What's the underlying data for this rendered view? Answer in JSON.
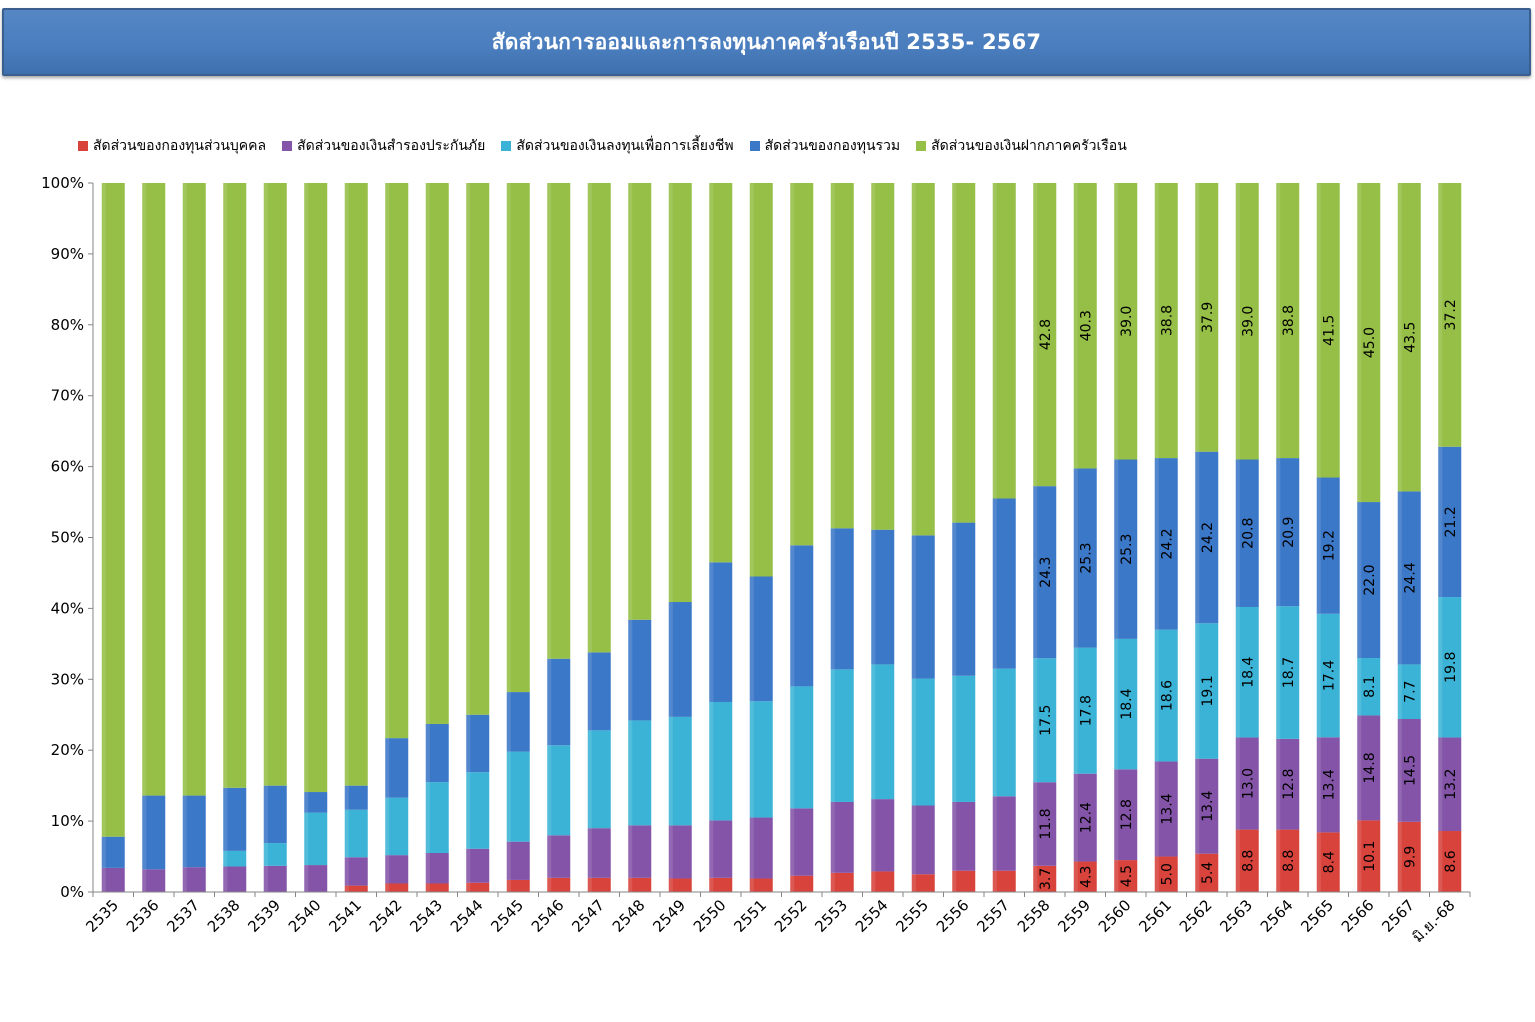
{
  "title": "สัดส่วนการออมและการลงทุนภาคครัวเรือนปี 2535- 2567",
  "colors": {
    "title_bg": "#4a7dbd",
    "series": [
      "#d8433c",
      "#8454a8",
      "#3bb3d6",
      "#3c78c8",
      "#95bf46"
    ]
  },
  "chart_data": {
    "type": "bar",
    "stacked": true,
    "percent": true,
    "title": "สัดส่วนการออมและการลงทุนภาคครัวเรือนปี 2535- 2567",
    "ylim": [
      0,
      100
    ],
    "yticks": [
      "0%",
      "10%",
      "20%",
      "30%",
      "40%",
      "50%",
      "60%",
      "70%",
      "80%",
      "90%",
      "100%"
    ],
    "legend_position": "top",
    "categories": [
      "2535",
      "2536",
      "2537",
      "2538",
      "2539",
      "2540",
      "2541",
      "2542",
      "2543",
      "2544",
      "2545",
      "2546",
      "2547",
      "2548",
      "2549",
      "2550",
      "2551",
      "2552",
      "2553",
      "2554",
      "2555",
      "2556",
      "2557",
      "2558",
      "2559",
      "2560",
      "2561",
      "2562",
      "2563",
      "2564",
      "2565",
      "2566",
      "2567",
      "มิ.ย.-68"
    ],
    "series": [
      {
        "name": "สัดส่วนของกองทุนส่วนบุคคล",
        "values": [
          0,
          0,
          0,
          0,
          0,
          0,
          0.9,
          1.2,
          1.2,
          1.3,
          1.7,
          2.0,
          2.0,
          2.0,
          1.9,
          2.0,
          1.9,
          2.3,
          2.7,
          2.9,
          2.5,
          3.0,
          3.0,
          3.7,
          4.3,
          4.5,
          5.0,
          5.4,
          8.8,
          8.8,
          8.4,
          10.1,
          9.9,
          8.6
        ]
      },
      {
        "name": "สัดส่วนของเงินสำรองประกันภัย",
        "values": [
          3.4,
          3.2,
          3.5,
          3.6,
          3.7,
          3.8,
          4.0,
          4.0,
          4.3,
          4.8,
          5.4,
          6.0,
          7.0,
          7.4,
          7.5,
          8.1,
          8.6,
          9.5,
          10.0,
          10.2,
          9.7,
          9.7,
          10.5,
          11.8,
          12.4,
          12.8,
          13.4,
          13.4,
          13.0,
          12.8,
          13.4,
          14.8,
          14.5,
          13.2
        ]
      },
      {
        "name": "สัดส่วนของเงินลงทุนเพื่อการเลี้ยงชีพ",
        "values": [
          0,
          0,
          0,
          2.2,
          3.2,
          7.4,
          6.7,
          8.1,
          10.0,
          10.8,
          12.7,
          12.7,
          13.8,
          14.8,
          15.3,
          16.7,
          16.4,
          17.2,
          18.7,
          19.0,
          17.9,
          17.8,
          18.0,
          17.5,
          17.8,
          18.4,
          18.6,
          19.1,
          18.4,
          18.7,
          17.4,
          8.1,
          7.7,
          19.8
        ]
      },
      {
        "name": "สัดส่วนของกองทุนรวม",
        "values": [
          4.4,
          10.4,
          10.1,
          8.9,
          8.1,
          2.9,
          3.4,
          8.4,
          8.2,
          8.1,
          8.4,
          12.2,
          11.0,
          14.2,
          16.2,
          19.7,
          17.6,
          19.9,
          19.9,
          19.0,
          20.2,
          21.6,
          24.0,
          24.3,
          25.3,
          25.3,
          24.2,
          24.2,
          20.8,
          20.9,
          19.2,
          22.0,
          24.4,
          21.2
        ]
      },
      {
        "name": "สัดส่วนของเงินฝากภาคครัวเรือน",
        "values": [
          92.2,
          86.4,
          86.4,
          85.3,
          85.0,
          85.9,
          85.0,
          78.3,
          76.3,
          75.0,
          71.8,
          67.1,
          66.2,
          61.6,
          59.1,
          53.5,
          55.5,
          51.1,
          48.7,
          48.9,
          49.7,
          47.9,
          44.5,
          42.8,
          40.3,
          39.0,
          38.8,
          37.9,
          39.0,
          38.8,
          41.5,
          45.0,
          43.5,
          37.2
        ]
      }
    ],
    "labeled_from_index": 23
  }
}
